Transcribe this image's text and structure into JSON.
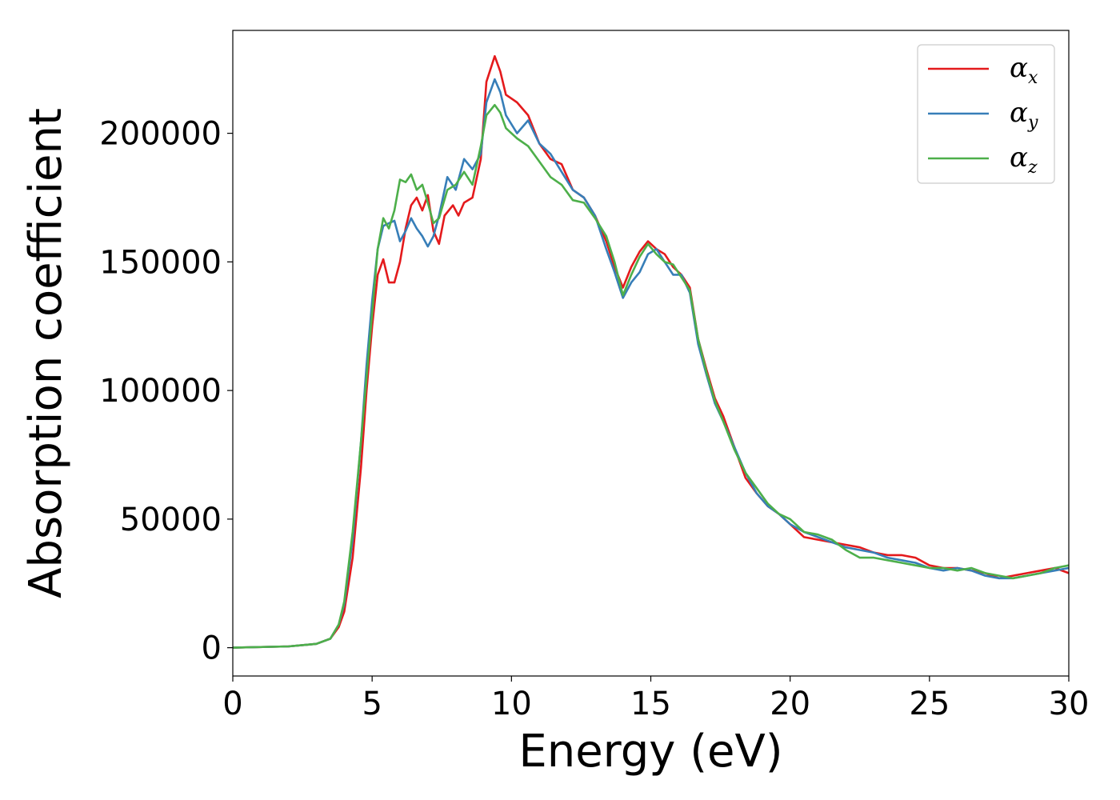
{
  "chart_data": {
    "type": "line",
    "xlabel": "Energy (eV)",
    "ylabel": "Absorption coefficient",
    "xlim": [
      0,
      30
    ],
    "ylim": [
      -11000,
      240000
    ],
    "xticks": [
      0,
      5,
      10,
      15,
      20,
      25,
      30
    ],
    "yticks": [
      0,
      50000,
      100000,
      150000,
      200000
    ],
    "grid": false,
    "legend_position": "top-right",
    "series": [
      {
        "name": "αx",
        "symbol": "α",
        "subscript": "x",
        "color": "#e41a1c",
        "points": [
          [
            0,
            0
          ],
          [
            2,
            500
          ],
          [
            3,
            1500
          ],
          [
            3.5,
            3500
          ],
          [
            3.8,
            8000
          ],
          [
            4,
            14000
          ],
          [
            4.3,
            35000
          ],
          [
            4.6,
            70000
          ],
          [
            4.8,
            100000
          ],
          [
            5.0,
            125000
          ],
          [
            5.2,
            145000
          ],
          [
            5.4,
            151000
          ],
          [
            5.6,
            142000
          ],
          [
            5.8,
            142000
          ],
          [
            6.0,
            150000
          ],
          [
            6.2,
            163000
          ],
          [
            6.4,
            172000
          ],
          [
            6.6,
            175000
          ],
          [
            6.8,
            170000
          ],
          [
            7.0,
            176000
          ],
          [
            7.2,
            162000
          ],
          [
            7.4,
            157000
          ],
          [
            7.6,
            168000
          ],
          [
            7.9,
            172000
          ],
          [
            8.1,
            168000
          ],
          [
            8.3,
            173000
          ],
          [
            8.6,
            175000
          ],
          [
            8.9,
            190000
          ],
          [
            9.1,
            220000
          ],
          [
            9.4,
            230000
          ],
          [
            9.6,
            224000
          ],
          [
            9.8,
            215000
          ],
          [
            10.2,
            212000
          ],
          [
            10.6,
            207000
          ],
          [
            11.0,
            196000
          ],
          [
            11.4,
            190000
          ],
          [
            11.8,
            188000
          ],
          [
            12.2,
            178000
          ],
          [
            12.6,
            175000
          ],
          [
            13.0,
            168000
          ],
          [
            13.4,
            158000
          ],
          [
            13.7,
            148000
          ],
          [
            14.0,
            140000
          ],
          [
            14.3,
            148000
          ],
          [
            14.6,
            154000
          ],
          [
            14.9,
            158000
          ],
          [
            15.2,
            155000
          ],
          [
            15.5,
            153000
          ],
          [
            15.8,
            148000
          ],
          [
            16.1,
            145000
          ],
          [
            16.4,
            140000
          ],
          [
            16.7,
            120000
          ],
          [
            17.0,
            108000
          ],
          [
            17.3,
            97000
          ],
          [
            17.6,
            90000
          ],
          [
            18.0,
            78000
          ],
          [
            18.4,
            66000
          ],
          [
            18.8,
            60000
          ],
          [
            19.2,
            55000
          ],
          [
            19.6,
            52000
          ],
          [
            20.0,
            48000
          ],
          [
            20.5,
            43000
          ],
          [
            21.0,
            42000
          ],
          [
            21.5,
            41000
          ],
          [
            22.0,
            40000
          ],
          [
            22.5,
            39000
          ],
          [
            23.0,
            37000
          ],
          [
            23.5,
            36000
          ],
          [
            24.0,
            36000
          ],
          [
            24.5,
            35000
          ],
          [
            25.0,
            32000
          ],
          [
            25.5,
            31000
          ],
          [
            26.0,
            31000
          ],
          [
            26.5,
            30000
          ],
          [
            27.0,
            29000
          ],
          [
            27.5,
            27000
          ],
          [
            28.0,
            28000
          ],
          [
            28.5,
            29000
          ],
          [
            29.0,
            30000
          ],
          [
            29.5,
            31000
          ],
          [
            30.0,
            29000
          ]
        ]
      },
      {
        "name": "αy",
        "symbol": "α",
        "subscript": "y",
        "color": "#377eb8",
        "points": [
          [
            0,
            0
          ],
          [
            2,
            500
          ],
          [
            3,
            1500
          ],
          [
            3.5,
            3500
          ],
          [
            3.8,
            9000
          ],
          [
            4,
            17000
          ],
          [
            4.3,
            42000
          ],
          [
            4.6,
            80000
          ],
          [
            4.8,
            110000
          ],
          [
            5.0,
            135000
          ],
          [
            5.2,
            155000
          ],
          [
            5.4,
            164000
          ],
          [
            5.6,
            165000
          ],
          [
            5.8,
            166000
          ],
          [
            6.0,
            158000
          ],
          [
            6.2,
            162000
          ],
          [
            6.4,
            167000
          ],
          [
            6.6,
            163000
          ],
          [
            6.8,
            160000
          ],
          [
            7.0,
            156000
          ],
          [
            7.2,
            160000
          ],
          [
            7.4,
            168000
          ],
          [
            7.7,
            183000
          ],
          [
            8.0,
            178000
          ],
          [
            8.3,
            190000
          ],
          [
            8.6,
            186000
          ],
          [
            8.9,
            192000
          ],
          [
            9.1,
            212000
          ],
          [
            9.4,
            221000
          ],
          [
            9.6,
            216000
          ],
          [
            9.8,
            207000
          ],
          [
            10.2,
            200000
          ],
          [
            10.6,
            205000
          ],
          [
            11.0,
            196000
          ],
          [
            11.4,
            192000
          ],
          [
            11.8,
            185000
          ],
          [
            12.2,
            178000
          ],
          [
            12.6,
            175000
          ],
          [
            13.0,
            168000
          ],
          [
            13.4,
            155000
          ],
          [
            13.7,
            146000
          ],
          [
            14.0,
            136000
          ],
          [
            14.3,
            142000
          ],
          [
            14.6,
            146000
          ],
          [
            14.9,
            153000
          ],
          [
            15.2,
            155000
          ],
          [
            15.5,
            150000
          ],
          [
            15.8,
            145000
          ],
          [
            16.1,
            145000
          ],
          [
            16.4,
            138000
          ],
          [
            16.7,
            118000
          ],
          [
            17.0,
            106000
          ],
          [
            17.3,
            95000
          ],
          [
            17.6,
            88000
          ],
          [
            18.0,
            78000
          ],
          [
            18.4,
            68000
          ],
          [
            18.8,
            60000
          ],
          [
            19.2,
            55000
          ],
          [
            19.6,
            52000
          ],
          [
            20.0,
            48000
          ],
          [
            20.5,
            45000
          ],
          [
            21.0,
            43000
          ],
          [
            21.5,
            41000
          ],
          [
            22.0,
            39000
          ],
          [
            22.5,
            38000
          ],
          [
            23.0,
            37000
          ],
          [
            23.5,
            35000
          ],
          [
            24.0,
            34000
          ],
          [
            24.5,
            33000
          ],
          [
            25.0,
            31000
          ],
          [
            25.5,
            30000
          ],
          [
            26.0,
            31000
          ],
          [
            26.5,
            30000
          ],
          [
            27.0,
            28000
          ],
          [
            27.5,
            27000
          ],
          [
            28.0,
            27000
          ],
          [
            28.5,
            28000
          ],
          [
            29.0,
            29000
          ],
          [
            29.5,
            30000
          ],
          [
            30.0,
            31000
          ]
        ]
      },
      {
        "name": "αz",
        "symbol": "α",
        "subscript": "z",
        "color": "#4daf4a",
        "points": [
          [
            0,
            0
          ],
          [
            2,
            500
          ],
          [
            3,
            1500
          ],
          [
            3.5,
            3500
          ],
          [
            3.8,
            9000
          ],
          [
            4,
            18000
          ],
          [
            4.3,
            45000
          ],
          [
            4.6,
            80000
          ],
          [
            4.8,
            105000
          ],
          [
            5.0,
            130000
          ],
          [
            5.2,
            155000
          ],
          [
            5.4,
            167000
          ],
          [
            5.6,
            163000
          ],
          [
            5.8,
            170000
          ],
          [
            6.0,
            182000
          ],
          [
            6.2,
            181000
          ],
          [
            6.4,
            184000
          ],
          [
            6.6,
            178000
          ],
          [
            6.8,
            180000
          ],
          [
            7.0,
            173000
          ],
          [
            7.2,
            165000
          ],
          [
            7.4,
            167000
          ],
          [
            7.7,
            178000
          ],
          [
            8.0,
            180000
          ],
          [
            8.3,
            185000
          ],
          [
            8.6,
            180000
          ],
          [
            8.9,
            195000
          ],
          [
            9.1,
            207000
          ],
          [
            9.4,
            211000
          ],
          [
            9.6,
            208000
          ],
          [
            9.8,
            202000
          ],
          [
            10.2,
            198000
          ],
          [
            10.6,
            195000
          ],
          [
            11.0,
            189000
          ],
          [
            11.4,
            183000
          ],
          [
            11.8,
            180000
          ],
          [
            12.2,
            174000
          ],
          [
            12.6,
            173000
          ],
          [
            13.0,
            167000
          ],
          [
            13.4,
            160000
          ],
          [
            13.7,
            150000
          ],
          [
            14.0,
            137000
          ],
          [
            14.3,
            145000
          ],
          [
            14.6,
            152000
          ],
          [
            14.9,
            157000
          ],
          [
            15.2,
            153000
          ],
          [
            15.5,
            150000
          ],
          [
            15.8,
            149000
          ],
          [
            16.1,
            144000
          ],
          [
            16.4,
            139000
          ],
          [
            16.7,
            120000
          ],
          [
            17.0,
            107000
          ],
          [
            17.3,
            96000
          ],
          [
            17.6,
            88000
          ],
          [
            18.0,
            77000
          ],
          [
            18.4,
            68000
          ],
          [
            18.8,
            62000
          ],
          [
            19.2,
            56000
          ],
          [
            19.6,
            52000
          ],
          [
            20.0,
            50000
          ],
          [
            20.5,
            45000
          ],
          [
            21.0,
            44000
          ],
          [
            21.5,
            42000
          ],
          [
            22.0,
            38000
          ],
          [
            22.5,
            35000
          ],
          [
            23.0,
            35000
          ],
          [
            23.5,
            34000
          ],
          [
            24.0,
            33000
          ],
          [
            24.5,
            32000
          ],
          [
            25.0,
            31000
          ],
          [
            25.5,
            31000
          ],
          [
            26.0,
            30000
          ],
          [
            26.5,
            31000
          ],
          [
            27.0,
            29000
          ],
          [
            27.5,
            28000
          ],
          [
            28.0,
            27000
          ],
          [
            28.5,
            28000
          ],
          [
            29.0,
            29000
          ],
          [
            29.5,
            31000
          ],
          [
            30.0,
            32000
          ]
        ]
      }
    ]
  }
}
